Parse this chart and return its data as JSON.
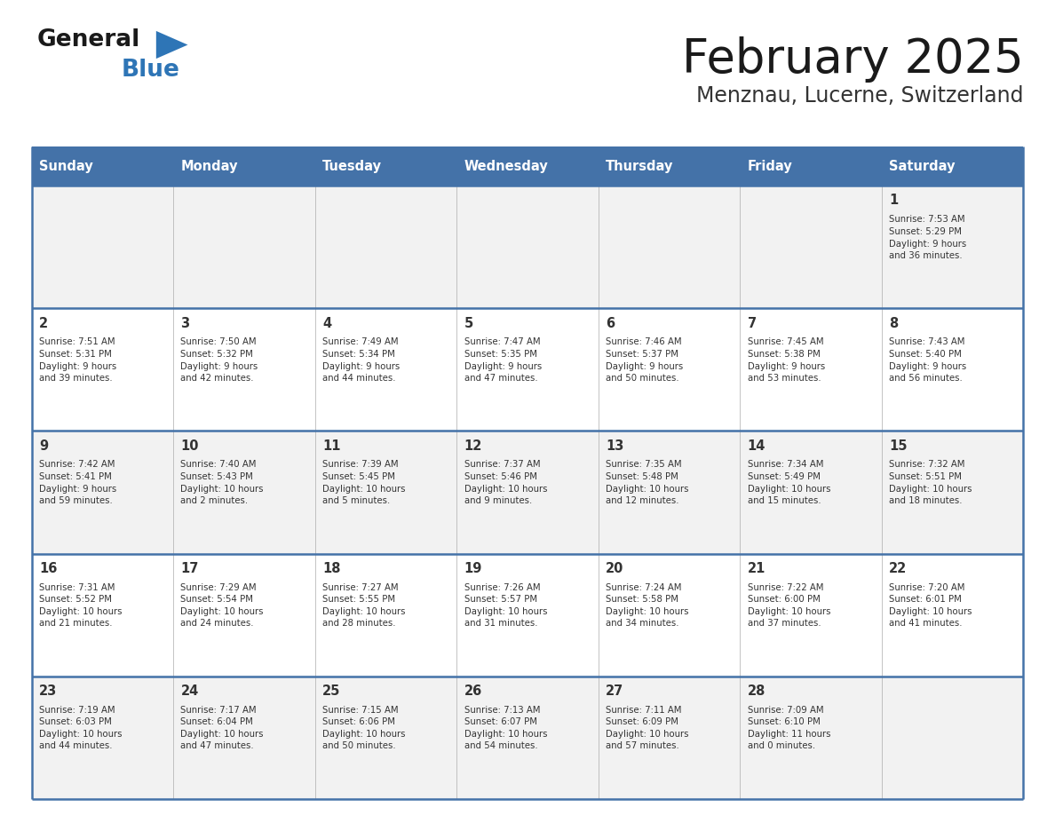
{
  "title": "February 2025",
  "subtitle": "Menznau, Lucerne, Switzerland",
  "days_of_week": [
    "Sunday",
    "Monday",
    "Tuesday",
    "Wednesday",
    "Thursday",
    "Friday",
    "Saturday"
  ],
  "header_bg": "#4472A8",
  "header_text": "#FFFFFF",
  "row_bg_odd": "#F2F2F2",
  "row_bg_even": "#FFFFFF",
  "border_color": "#4472A8",
  "cell_border_color": "#AAAAAA",
  "day_number_color": "#333333",
  "info_text_color": "#333333",
  "title_color": "#1a1a1a",
  "subtitle_color": "#333333",
  "logo_general_color": "#1a1a1a",
  "logo_blue_color": "#2E75B6",
  "logo_triangle_color": "#2E75B6",
  "calendar": [
    [
      null,
      null,
      null,
      null,
      null,
      null,
      {
        "day": 1,
        "sunrise": "7:53 AM",
        "sunset": "5:29 PM",
        "daylight": "9 hours\nand 36 minutes."
      }
    ],
    [
      {
        "day": 2,
        "sunrise": "7:51 AM",
        "sunset": "5:31 PM",
        "daylight": "9 hours\nand 39 minutes."
      },
      {
        "day": 3,
        "sunrise": "7:50 AM",
        "sunset": "5:32 PM",
        "daylight": "9 hours\nand 42 minutes."
      },
      {
        "day": 4,
        "sunrise": "7:49 AM",
        "sunset": "5:34 PM",
        "daylight": "9 hours\nand 44 minutes."
      },
      {
        "day": 5,
        "sunrise": "7:47 AM",
        "sunset": "5:35 PM",
        "daylight": "9 hours\nand 47 minutes."
      },
      {
        "day": 6,
        "sunrise": "7:46 AM",
        "sunset": "5:37 PM",
        "daylight": "9 hours\nand 50 minutes."
      },
      {
        "day": 7,
        "sunrise": "7:45 AM",
        "sunset": "5:38 PM",
        "daylight": "9 hours\nand 53 minutes."
      },
      {
        "day": 8,
        "sunrise": "7:43 AM",
        "sunset": "5:40 PM",
        "daylight": "9 hours\nand 56 minutes."
      }
    ],
    [
      {
        "day": 9,
        "sunrise": "7:42 AM",
        "sunset": "5:41 PM",
        "daylight": "9 hours\nand 59 minutes."
      },
      {
        "day": 10,
        "sunrise": "7:40 AM",
        "sunset": "5:43 PM",
        "daylight": "10 hours\nand 2 minutes."
      },
      {
        "day": 11,
        "sunrise": "7:39 AM",
        "sunset": "5:45 PM",
        "daylight": "10 hours\nand 5 minutes."
      },
      {
        "day": 12,
        "sunrise": "7:37 AM",
        "sunset": "5:46 PM",
        "daylight": "10 hours\nand 9 minutes."
      },
      {
        "day": 13,
        "sunrise": "7:35 AM",
        "sunset": "5:48 PM",
        "daylight": "10 hours\nand 12 minutes."
      },
      {
        "day": 14,
        "sunrise": "7:34 AM",
        "sunset": "5:49 PM",
        "daylight": "10 hours\nand 15 minutes."
      },
      {
        "day": 15,
        "sunrise": "7:32 AM",
        "sunset": "5:51 PM",
        "daylight": "10 hours\nand 18 minutes."
      }
    ],
    [
      {
        "day": 16,
        "sunrise": "7:31 AM",
        "sunset": "5:52 PM",
        "daylight": "10 hours\nand 21 minutes."
      },
      {
        "day": 17,
        "sunrise": "7:29 AM",
        "sunset": "5:54 PM",
        "daylight": "10 hours\nand 24 minutes."
      },
      {
        "day": 18,
        "sunrise": "7:27 AM",
        "sunset": "5:55 PM",
        "daylight": "10 hours\nand 28 minutes."
      },
      {
        "day": 19,
        "sunrise": "7:26 AM",
        "sunset": "5:57 PM",
        "daylight": "10 hours\nand 31 minutes."
      },
      {
        "day": 20,
        "sunrise": "7:24 AM",
        "sunset": "5:58 PM",
        "daylight": "10 hours\nand 34 minutes."
      },
      {
        "day": 21,
        "sunrise": "7:22 AM",
        "sunset": "6:00 PM",
        "daylight": "10 hours\nand 37 minutes."
      },
      {
        "day": 22,
        "sunrise": "7:20 AM",
        "sunset": "6:01 PM",
        "daylight": "10 hours\nand 41 minutes."
      }
    ],
    [
      {
        "day": 23,
        "sunrise": "7:19 AM",
        "sunset": "6:03 PM",
        "daylight": "10 hours\nand 44 minutes."
      },
      {
        "day": 24,
        "sunrise": "7:17 AM",
        "sunset": "6:04 PM",
        "daylight": "10 hours\nand 47 minutes."
      },
      {
        "day": 25,
        "sunrise": "7:15 AM",
        "sunset": "6:06 PM",
        "daylight": "10 hours\nand 50 minutes."
      },
      {
        "day": 26,
        "sunrise": "7:13 AM",
        "sunset": "6:07 PM",
        "daylight": "10 hours\nand 54 minutes."
      },
      {
        "day": 27,
        "sunrise": "7:11 AM",
        "sunset": "6:09 PM",
        "daylight": "10 hours\nand 57 minutes."
      },
      {
        "day": 28,
        "sunrise": "7:09 AM",
        "sunset": "6:10 PM",
        "daylight": "11 hours\nand 0 minutes."
      },
      null
    ]
  ]
}
